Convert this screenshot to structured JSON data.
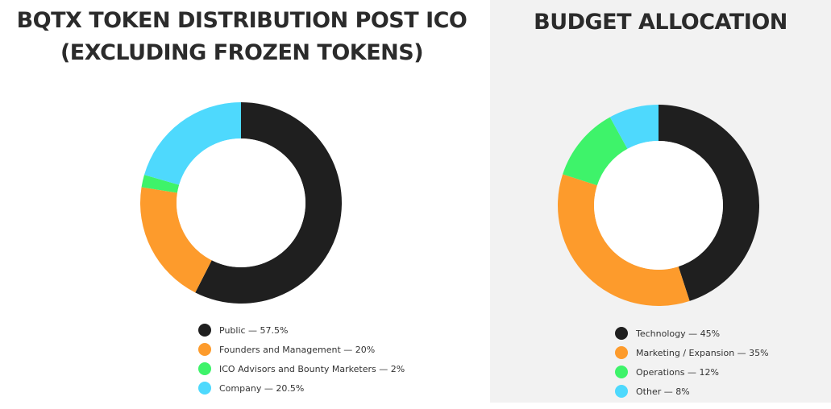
{
  "chart_data": [
    {
      "type": "pie",
      "title_lines": [
        "BQTX TOKEN DISTRIBUTION POST ICO",
        "(EXCLUDING FROZEN TOKENS)"
      ],
      "slices": [
        {
          "label": "Public",
          "value": 57.5,
          "legend": "Public — 57.5%",
          "color": "#1f1f1f"
        },
        {
          "label": "Founders and Management",
          "value": 20,
          "legend": "Founders and Management — 20%",
          "color": "#fd9b2c"
        },
        {
          "label": "ICO Advisors and Bounty Marketers",
          "value": 2,
          "legend": "ICO Advisors and Bounty Marketers — 2%",
          "color": "#3ef36a"
        },
        {
          "label": "Company",
          "value": 20.5,
          "legend": "Company — 20.5%",
          "color": "#4ed9fd"
        }
      ],
      "donut": true,
      "legend_position": "bottom"
    },
    {
      "type": "pie",
      "title_lines": [
        "BUDGET ALLOCATION"
      ],
      "slices": [
        {
          "label": "Technology",
          "value": 45,
          "legend": "Technology — 45%",
          "color": "#1f1f1f"
        },
        {
          "label": "Marketing / Expansion",
          "value": 35,
          "legend": "Marketing / Expansion — 35%",
          "color": "#fd9b2c"
        },
        {
          "label": "Operations",
          "value": 12,
          "legend": "Operations — 12%",
          "color": "#3ef36a"
        },
        {
          "label": "Other",
          "value": 8,
          "legend": "Other — 8%",
          "color": "#4ed9fd"
        }
      ],
      "donut": true,
      "legend_position": "bottom"
    }
  ]
}
